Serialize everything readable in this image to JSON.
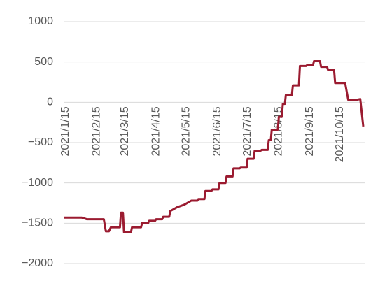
{
  "chart_data": {
    "type": "line",
    "x": [
      "2021/1/13",
      "2021/1/31",
      "2021/2/5",
      "2021/2/22",
      "2021/2/24",
      "2021/2/27",
      "2021/3/1",
      "2021/3/10",
      "2021/3/11",
      "2021/3/13",
      "2021/3/14",
      "2021/3/21",
      "2021/3/22",
      "2021/3/31",
      "2021/4/1",
      "2021/4/7",
      "2021/4/8",
      "2021/4/14",
      "2021/4/15",
      "2021/4/21",
      "2021/4/22",
      "2021/4/28",
      "2021/4/29",
      "2021/5/6",
      "2021/5/13",
      "2021/5/20",
      "2021/5/26",
      "2021/5/27",
      "2021/6/2",
      "2021/6/3",
      "2021/6/9",
      "2021/6/10",
      "2021/6/16",
      "2021/6/17",
      "2021/6/23",
      "2021/6/24",
      "2021/6/30",
      "2021/7/1",
      "2021/7/7",
      "2021/7/8",
      "2021/7/14",
      "2021/7/15",
      "2021/7/21",
      "2021/7/22",
      "2021/7/28",
      "2021/7/29",
      "2021/8/4",
      "2021/8/5",
      "2021/8/7",
      "2021/8/8",
      "2021/8/14",
      "2021/8/15",
      "2021/8/18",
      "2021/8/19",
      "2021/8/21",
      "2021/8/22",
      "2021/8/28",
      "2021/8/29",
      "2021/9/4",
      "2021/9/5",
      "2021/9/11",
      "2021/9/12",
      "2021/9/18",
      "2021/9/19",
      "2021/9/25",
      "2021/9/26",
      "2021/10/2",
      "2021/10/3",
      "2021/10/9",
      "2021/10/10",
      "2021/10/20",
      "2021/10/23",
      "2021/10/31",
      "2021/11/4",
      "2021/11/7"
    ],
    "series": [
      {
        "name": "series",
        "color": "#9b1b30",
        "values": [
          -1430,
          -1430,
          -1450,
          -1450,
          -1600,
          -1600,
          -1550,
          -1550,
          -1370,
          -1370,
          -1610,
          -1610,
          -1550,
          -1550,
          -1500,
          -1500,
          -1470,
          -1470,
          -1450,
          -1450,
          -1420,
          -1420,
          -1350,
          -1300,
          -1270,
          -1220,
          -1220,
          -1200,
          -1200,
          -1100,
          -1100,
          -1080,
          -1080,
          -1000,
          -1000,
          -920,
          -920,
          -820,
          -820,
          -810,
          -810,
          -700,
          -700,
          -600,
          -600,
          -590,
          -590,
          -470,
          -470,
          -340,
          -340,
          -180,
          -180,
          -20,
          -20,
          90,
          90,
          210,
          210,
          450,
          450,
          460,
          460,
          510,
          510,
          440,
          440,
          400,
          400,
          240,
          240,
          30,
          30,
          40,
          -300
        ]
      }
    ],
    "xlim": [
      "2021/1/13",
      "2021/11/7"
    ],
    "xticks": [
      "2021/1/15",
      "2021/2/15",
      "2021/3/15",
      "2021/4/15",
      "2021/5/15",
      "2021/6/15",
      "2021/7/15",
      "2021/8/15",
      "2021/9/15",
      "2021/10/15"
    ],
    "ylim": [
      -2000,
      1000
    ],
    "yticks": [
      {
        "value": -2000,
        "label": "−2000"
      },
      {
        "value": -1500,
        "label": "−1500"
      },
      {
        "value": -1000,
        "label": "−1000"
      },
      {
        "value": -500,
        "label": "−500"
      },
      0,
      500,
      1000
    ],
    "grid": true
  }
}
